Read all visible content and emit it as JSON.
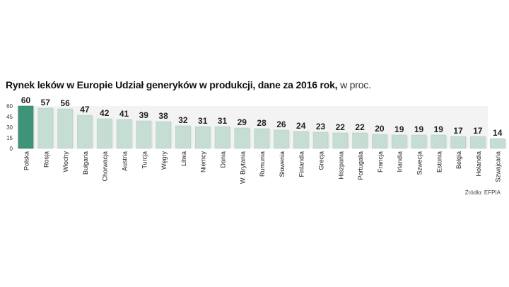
{
  "title_bold": "Rynek leków w Europie Udział generyków w produkcji, dane za 2016 rok,",
  "title_unit": "w proc.",
  "source": "Źródło: EFPIA",
  "colors": {
    "highlight": "#3d9479",
    "bar": "#c5ddd2",
    "bar_shadow": "#dfe7e2",
    "background_band": "#f3f3f3",
    "value_label": "#1f1f1f"
  },
  "chart_data": {
    "type": "bar",
    "title": "Rynek leków w Europie Udział generyków w produkcji, dane za 2016 rok, w proc.",
    "categories": [
      "Polska",
      "Rosja",
      "Włochy",
      "Bułgaria",
      "Chorwacja",
      "Austria",
      "Turcja",
      "Węgry",
      "Litwa",
      "Niemcy",
      "Dania",
      "W. Brytania",
      "Rumunia",
      "Słowenia",
      "Finlandia",
      "Grecja",
      "Hiszpania",
      "Portugalia",
      "Francja",
      "Irlandia",
      "Szwecja",
      "Estonia",
      "Belgia",
      "Holandia",
      "Szwajcaria"
    ],
    "values": [
      60,
      57,
      56,
      47,
      42,
      41,
      39,
      38,
      32,
      31,
      31,
      29,
      28,
      26,
      24,
      23,
      22,
      22,
      20,
      19,
      19,
      19,
      17,
      17,
      14
    ],
    "highlight_index": 0,
    "ylim": [
      0,
      60
    ],
    "yticks": [
      0,
      15,
      30,
      45,
      60
    ],
    "grid": false,
    "legend": "none",
    "xlabel": "",
    "ylabel": ""
  }
}
